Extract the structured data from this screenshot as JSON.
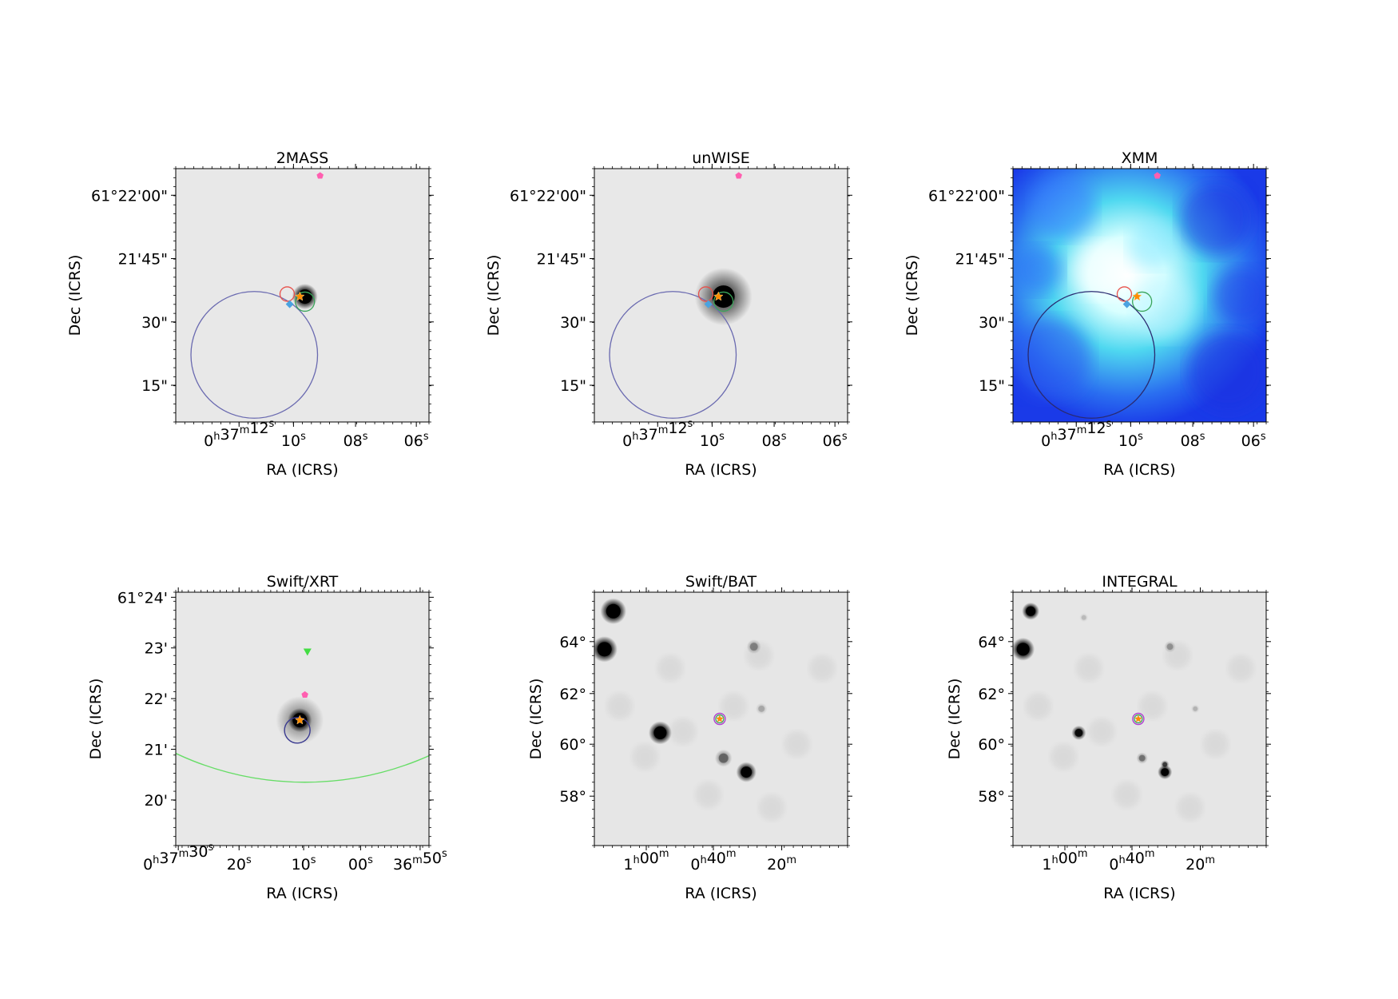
{
  "chart_data": [
    {
      "type": "heatmap",
      "title": "2MASS",
      "xlabel": "RA (ICRS)",
      "ylabel": "Dec (ICRS)",
      "colormap": "gray_r",
      "x_ticks": [
        {
          "h": "0",
          "hu": "h",
          "m": "37",
          "mu": "m",
          "s": "12",
          "su": "s"
        },
        {
          "s": "10",
          "su": "s"
        },
        {
          "s": "08",
          "su": "s"
        },
        {
          "s": "06",
          "su": "s"
        }
      ],
      "y_ticks": [
        "61°22'00\"",
        "21'45\"",
        "30\"",
        "15\""
      ],
      "sources": [
        {
          "kind": "bright-source",
          "shape": "blob",
          "color": "#000000"
        },
        {
          "kind": "position-star",
          "shape": "star",
          "color": "#ff8c00"
        },
        {
          "kind": "red-circle",
          "shape": "circle",
          "color": "#e8504a"
        },
        {
          "kind": "green-circle",
          "shape": "circle",
          "color": "#3aa55a"
        },
        {
          "kind": "blue-diamond",
          "shape": "diamond",
          "color": "#4aa3e0"
        },
        {
          "kind": "pink-pentagon",
          "shape": "pentagon",
          "color": "#ff5fb0"
        },
        {
          "kind": "large-error-circle",
          "shape": "circle",
          "color": "#6a6ab0"
        }
      ]
    },
    {
      "type": "heatmap",
      "title": "unWISE",
      "xlabel": "RA (ICRS)",
      "ylabel": "Dec (ICRS)",
      "colormap": "gray_r",
      "x_ticks": [
        {
          "h": "0",
          "hu": "h",
          "m": "37",
          "mu": "m",
          "s": "12",
          "su": "s"
        },
        {
          "s": "10",
          "su": "s"
        },
        {
          "s": "08",
          "su": "s"
        },
        {
          "s": "06",
          "su": "s"
        }
      ],
      "y_ticks": [
        "61°22'00\"",
        "21'45\"",
        "30\"",
        "15\""
      ],
      "sources": [
        {
          "kind": "bright-source",
          "shape": "blob",
          "color": "#000000"
        },
        {
          "kind": "position-star",
          "shape": "star",
          "color": "#ff8c00"
        },
        {
          "kind": "red-circle",
          "shape": "circle",
          "color": "#e8504a"
        },
        {
          "kind": "green-circle",
          "shape": "circle",
          "color": "#3aa55a"
        },
        {
          "kind": "blue-diamond",
          "shape": "diamond",
          "color": "#4aa3e0"
        },
        {
          "kind": "pink-pentagon",
          "shape": "pentagon",
          "color": "#ff5fb0"
        },
        {
          "kind": "large-error-circle",
          "shape": "circle",
          "color": "#6a6ab0"
        }
      ]
    },
    {
      "type": "heatmap",
      "title": "XMM",
      "xlabel": "RA (ICRS)",
      "ylabel": "Dec (ICRS)",
      "colormap": "blue-cyan-white",
      "x_ticks": [
        {
          "h": "0",
          "hu": "h",
          "m": "37",
          "mu": "m",
          "s": "12",
          "su": "s"
        },
        {
          "s": "10",
          "su": "s"
        },
        {
          "s": "08",
          "su": "s"
        },
        {
          "s": "06",
          "su": "s"
        }
      ],
      "y_ticks": [
        "61°22'00\"",
        "21'45\"",
        "30\"",
        "15\""
      ],
      "sources": [
        {
          "kind": "position-star",
          "shape": "star",
          "color": "#ff8c00"
        },
        {
          "kind": "red-circle",
          "shape": "circle",
          "color": "#e8504a"
        },
        {
          "kind": "green-circle",
          "shape": "circle",
          "color": "#3aa55a"
        },
        {
          "kind": "blue-diamond",
          "shape": "diamond",
          "color": "#4aa3e0"
        },
        {
          "kind": "pink-pentagon",
          "shape": "pentagon",
          "color": "#ff5fb0"
        },
        {
          "kind": "large-error-circle",
          "shape": "circle",
          "color": "#2a2a70"
        }
      ]
    },
    {
      "type": "heatmap",
      "title": "Swift/XRT",
      "xlabel": "RA (ICRS)",
      "ylabel": "Dec (ICRS)",
      "colormap": "gray_r",
      "x_ticks": [
        {
          "h": "0",
          "hu": "h",
          "m": "37",
          "mu": "m",
          "s": "30",
          "su": "s"
        },
        {
          "s": "20",
          "su": "s"
        },
        {
          "s": "10",
          "su": "s"
        },
        {
          "s": "00",
          "su": "s"
        },
        {
          "m": "36",
          "mu": "m",
          "s": "50",
          "su": "s"
        }
      ],
      "y_ticks": [
        "61°24'",
        "23'",
        "22'",
        "21'",
        "20'"
      ],
      "sources": [
        {
          "kind": "bright-source",
          "shape": "blob",
          "color": "#000000"
        },
        {
          "kind": "position-star",
          "shape": "star",
          "color": "#ff8c00"
        },
        {
          "kind": "blue-circle",
          "shape": "circle",
          "color": "#3a3a90"
        },
        {
          "kind": "pink-pentagon",
          "shape": "pentagon",
          "color": "#ff5fb0"
        },
        {
          "kind": "green-triangle",
          "shape": "triangle",
          "color": "#44dd44"
        },
        {
          "kind": "large-green-arc",
          "shape": "arc",
          "color": "#66dd66"
        }
      ]
    },
    {
      "type": "heatmap",
      "title": "Swift/BAT",
      "xlabel": "RA (ICRS)",
      "ylabel": "Dec (ICRS)",
      "colormap": "gray_r",
      "x_ticks": [
        {
          "h": "1",
          "hu": "h",
          "m": "00",
          "mu": "m"
        },
        {
          "h": "0",
          "hu": "h",
          "m": "40",
          "mu": "m"
        },
        {
          "m": "20",
          "mu": "m"
        }
      ],
      "y_ticks": [
        "64°",
        "62°",
        "60°",
        "58°"
      ],
      "sources": [
        {
          "kind": "field-source",
          "shape": "blob",
          "color": "#000000"
        },
        {
          "kind": "position-star",
          "shape": "star",
          "color": "#ff8c00"
        },
        {
          "kind": "purple-circle",
          "shape": "circle",
          "color": "#b040d0"
        },
        {
          "kind": "green-circle",
          "shape": "circle",
          "color": "#3aa55a"
        }
      ]
    },
    {
      "type": "heatmap",
      "title": "INTEGRAL",
      "xlabel": "RA (ICRS)",
      "ylabel": "Dec (ICRS)",
      "colormap": "gray_r",
      "x_ticks": [
        {
          "h": "1",
          "hu": "h",
          "m": "00",
          "mu": "m"
        },
        {
          "h": "0",
          "hu": "h",
          "m": "40",
          "mu": "m"
        },
        {
          "m": "20",
          "mu": "m"
        }
      ],
      "y_ticks": [
        "64°",
        "62°",
        "60°",
        "58°"
      ],
      "sources": [
        {
          "kind": "field-source",
          "shape": "blob",
          "color": "#000000"
        },
        {
          "kind": "position-star",
          "shape": "star",
          "color": "#ff8c00"
        },
        {
          "kind": "purple-circle",
          "shape": "circle",
          "color": "#b040d0"
        },
        {
          "kind": "green-circle",
          "shape": "circle",
          "color": "#3aa55a"
        }
      ]
    }
  ]
}
